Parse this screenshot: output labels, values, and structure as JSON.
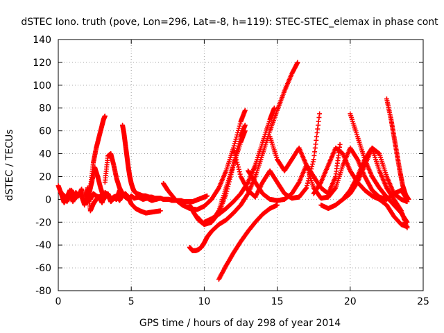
{
  "chart_data": {
    "type": "scatter",
    "title": "dSTEC Iono. truth (pove, Lon=296, Lat=-8, h=119): STEC-STEC_elemax in phase cont",
    "xlabel": "GPS time / hours of day 298 of year 2014",
    "ylabel": "dSTEC  / TECUs",
    "xlim": [
      0,
      25
    ],
    "ylim": [
      -80,
      140
    ],
    "xticks": [
      0,
      5,
      10,
      15,
      20,
      25
    ],
    "yticks": [
      -80,
      -60,
      -40,
      -20,
      0,
      20,
      40,
      60,
      80,
      100,
      120,
      140
    ],
    "grid": true,
    "marker": "+",
    "color": "#ff0000",
    "series": [
      {
        "x": [
          0.0,
          0.2,
          0.4,
          0.6,
          0.8,
          1.0,
          1.2,
          1.4,
          1.6,
          1.8,
          2.0,
          2.2,
          2.4,
          2.6,
          2.8,
          3.0,
          3.2,
          3.4,
          3.6,
          3.8,
          4.0,
          4.2,
          4.4,
          4.6,
          4.8,
          5.0,
          5.2,
          5.5,
          5.8,
          6.1,
          6.4,
          6.7,
          7.0
        ],
        "y": [
          12,
          5,
          -3,
          2,
          8,
          -2,
          6,
          3,
          9,
          -4,
          7,
          0,
          5,
          3,
          2,
          4,
          1,
          5,
          0,
          2,
          3,
          -1,
          4,
          2,
          0,
          3,
          1,
          2,
          0,
          1,
          -1,
          0,
          1
        ]
      },
      {
        "x": [
          0.3,
          0.6,
          0.9,
          1.2,
          1.5,
          1.8,
          2.0,
          2.2,
          2.4,
          2.6,
          2.8,
          3.0,
          3.2,
          3.4,
          3.6,
          3.8,
          4.0,
          4.2,
          4.4,
          4.6,
          4.8,
          5.0,
          5.3,
          5.6,
          6.0,
          6.5,
          7.0
        ],
        "y": [
          5,
          -2,
          8,
          1,
          6,
          -5,
          10,
          -10,
          -4,
          0,
          2,
          -3,
          6,
          4,
          -2,
          1,
          0,
          8,
          3,
          5,
          2,
          -4,
          -8,
          -10,
          -12,
          -11,
          -10
        ]
      },
      {
        "x": [
          2.0,
          2.2,
          2.4,
          2.6,
          2.8,
          3.0,
          3.1,
          3.2
        ],
        "y": [
          -3,
          10,
          32,
          45,
          55,
          65,
          70,
          73
        ]
      },
      {
        "x": [
          2.1,
          2.3,
          2.5,
          2.7,
          2.9,
          3.1
        ],
        "y": [
          5,
          15,
          28,
          20,
          10,
          2
        ]
      },
      {
        "x": [
          3.2,
          3.4,
          3.6,
          3.8,
          4.0,
          4.2,
          4.4
        ],
        "y": [
          15,
          38,
          40,
          30,
          18,
          10,
          5
        ]
      },
      {
        "x": [
          4.4,
          4.5,
          4.6,
          4.7,
          4.8,
          4.9,
          5.0,
          5.1,
          5.2,
          5.4,
          5.6,
          5.8,
          6.0,
          6.2,
          6.4,
          6.6,
          6.8,
          7.0,
          7.2,
          7.4,
          7.6,
          7.8,
          8.0,
          8.2,
          8.4,
          8.6,
          8.8,
          9.0,
          9.2,
          9.4,
          9.6,
          9.8,
          10.0,
          10.2
        ],
        "y": [
          65,
          58,
          48,
          38,
          28,
          20,
          14,
          10,
          7,
          5,
          4,
          3,
          3,
          2,
          2,
          1,
          1,
          1,
          0,
          0,
          0,
          -1,
          -1,
          -1,
          -1,
          -2,
          -2,
          -2,
          -2,
          -1,
          0,
          1,
          2,
          3
        ]
      },
      {
        "x": [
          7.2,
          7.5,
          8.0,
          8.5,
          9.0,
          9.5,
          10.0,
          10.5,
          11.0,
          11.5,
          12.0,
          12.5,
          12.8
        ],
        "y": [
          14,
          8,
          0,
          -5,
          -8,
          -9,
          -6,
          0,
          10,
          25,
          45,
          68,
          78
        ]
      },
      {
        "x": [
          9.0,
          9.2,
          9.4,
          9.6,
          9.8,
          10.0,
          10.2,
          10.5,
          11.0,
          11.5,
          12.0,
          12.5,
          13.0,
          13.5,
          14.0,
          14.5,
          15.0,
          15.5,
          16.0,
          16.4
        ],
        "y": [
          -42,
          -45,
          -45,
          -44,
          -42,
          -38,
          -33,
          -28,
          -22,
          -18,
          -12,
          -5,
          5,
          20,
          40,
          60,
          78,
          95,
          110,
          120
        ]
      },
      {
        "x": [
          9.0,
          9.3,
          9.6,
          10.0,
          10.5,
          11.0,
          11.5,
          12.0,
          12.5,
          12.8
        ],
        "y": [
          -5,
          -12,
          -18,
          -22,
          -20,
          -12,
          5,
          30,
          55,
          65
        ]
      },
      {
        "x": [
          9.5,
          10.0,
          10.5,
          11.0,
          11.5,
          12.0,
          12.5,
          12.8
        ],
        "y": [
          -15,
          -22,
          -20,
          -10,
          10,
          30,
          50,
          60
        ]
      },
      {
        "x": [
          11.0,
          11.5,
          12.0,
          12.5,
          13.0,
          13.5,
          14.0,
          14.5,
          15.0
        ],
        "y": [
          -70,
          -58,
          -47,
          -37,
          -28,
          -20,
          -13,
          -8,
          -5
        ]
      },
      {
        "x": [
          10.0,
          10.5,
          11.0,
          11.5,
          12.0,
          12.5,
          13.0,
          13.5,
          14.0,
          14.5,
          14.8
        ],
        "y": [
          -20,
          -17,
          -13,
          -8,
          -2,
          5,
          15,
          30,
          50,
          70,
          80
        ]
      },
      {
        "x": [
          12.0,
          12.5,
          13.0,
          13.5,
          14.0,
          14.5,
          15.0,
          15.5,
          16.0,
          16.5,
          17.0,
          17.5,
          17.9
        ],
        "y": [
          45,
          20,
          8,
          2,
          15,
          25,
          15,
          5,
          1,
          2,
          10,
          35,
          75
        ]
      },
      {
        "x": [
          13.0,
          13.5,
          14.0,
          14.5,
          15.0,
          15.5,
          16.0,
          16.5,
          17.0,
          17.5,
          18.0,
          18.5,
          19.0,
          19.3
        ],
        "y": [
          25,
          15,
          5,
          0,
          -1,
          0,
          5,
          15,
          30,
          20,
          10,
          5,
          20,
          48
        ]
      },
      {
        "x": [
          14.5,
          15.0,
          15.5,
          16.0,
          16.5,
          17.0,
          17.5,
          18.0,
          18.5,
          19.0,
          19.5,
          20.0,
          20.5,
          21.0,
          21.5,
          22.0,
          22.5,
          23.0,
          23.5,
          23.9
        ],
        "y": [
          55,
          35,
          25,
          35,
          45,
          30,
          10,
          1,
          2,
          10,
          30,
          45,
          35,
          20,
          8,
          2,
          0,
          5,
          8,
          0
        ]
      },
      {
        "x": [
          18.0,
          18.5,
          19.0,
          19.5,
          20.0,
          20.5,
          21.0,
          21.5,
          22.0,
          22.5,
          23.0,
          23.5,
          23.9
        ],
        "y": [
          -5,
          -8,
          -5,
          0,
          5,
          15,
          30,
          45,
          25,
          10,
          0,
          -10,
          -25
        ]
      },
      {
        "x": [
          17.5,
          18.0,
          18.5,
          19.0,
          19.5,
          20.0,
          20.5,
          21.0,
          21.5,
          22.0,
          22.5,
          23.0,
          23.5,
          23.9
        ],
        "y": [
          5,
          15,
          30,
          45,
          40,
          25,
          15,
          8,
          3,
          0,
          -5,
          -15,
          -22,
          -24
        ]
      },
      {
        "x": [
          19.5,
          20.0,
          20.5,
          21.0,
          21.5,
          22.0,
          22.5,
          23.0,
          23.5,
          23.9
        ],
        "y": [
          0,
          8,
          20,
          35,
          45,
          40,
          20,
          5,
          0,
          -2
        ]
      },
      {
        "x": [
          20.0,
          20.5,
          21.0,
          21.5,
          22.0,
          22.5,
          23.0,
          23.5,
          23.9
        ],
        "y": [
          75,
          55,
          35,
          20,
          10,
          2,
          -5,
          -12,
          -20
        ]
      },
      {
        "x": [
          22.5,
          22.8,
          23.0,
          23.2,
          23.4,
          23.6,
          23.8,
          24.0
        ],
        "y": [
          88,
          70,
          55,
          40,
          25,
          12,
          4,
          0
        ]
      }
    ]
  }
}
